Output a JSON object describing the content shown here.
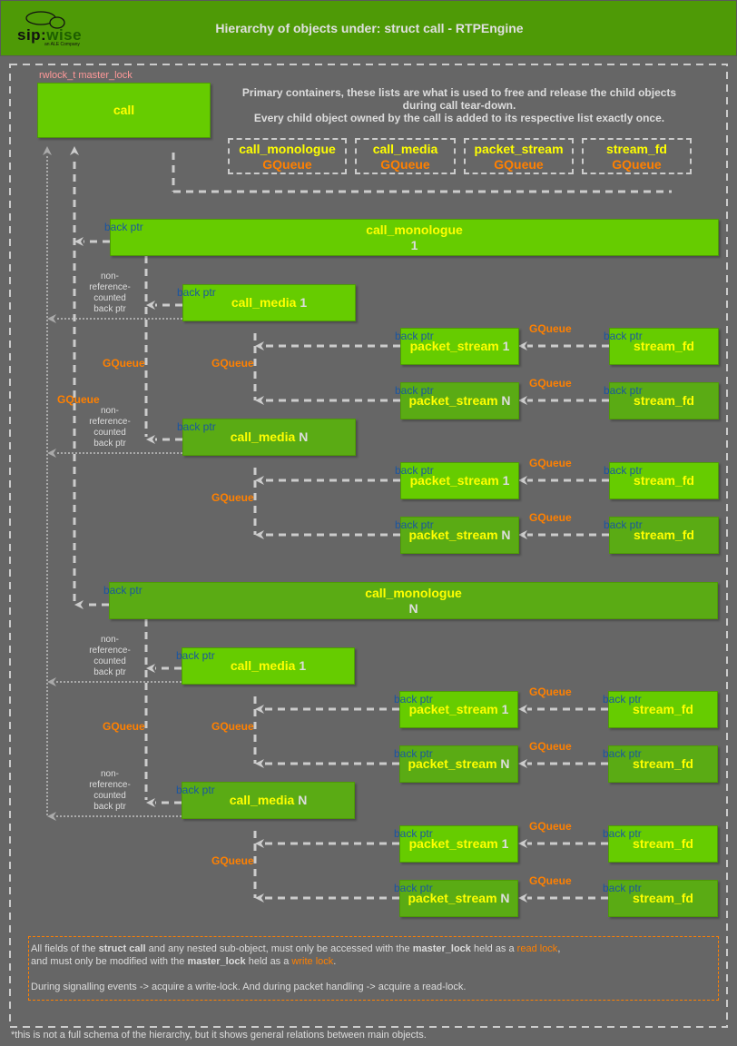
{
  "header": {
    "title": "Hierarchy of objects under: struct call - RTPEngine",
    "background": "#4e9a06"
  },
  "logo": {
    "text_a": "sip:",
    "text_b": "wise",
    "tagline": "an ALE Company"
  },
  "call": {
    "lock_label": "rwlock_t master_lock",
    "label": "call"
  },
  "containers_note": [
    "Primary containers, these lists are what is used to free and release the child objects",
    "during call tear-down.",
    "Every child object owned by the call is added to its respective list exactly once."
  ],
  "containers": [
    {
      "name": "call_monologue",
      "type": "GQueue"
    },
    {
      "name": "call_media",
      "type": "GQueue"
    },
    {
      "name": "packet_stream",
      "type": "GQueue"
    },
    {
      "name": "stream_fd",
      "type": "GQueue"
    }
  ],
  "labels": {
    "back_ptr": "back ptr",
    "gqueue": "GQueue",
    "non_ref": [
      "non-",
      "reference-",
      "counted",
      "back ptr"
    ]
  },
  "monologues": [
    {
      "label": "call_monologue",
      "index": "1",
      "medias": [
        {
          "label": "call_media",
          "index": "1",
          "streams": [
            {
              "label": "packet_stream",
              "index": "1",
              "fd": "stream_fd"
            },
            {
              "label": "packet_stream",
              "index": "N",
              "fd": "stream_fd"
            }
          ]
        },
        {
          "label": "call_media",
          "index": "N",
          "streams": [
            {
              "label": "packet_stream",
              "index": "1",
              "fd": "stream_fd"
            },
            {
              "label": "packet_stream",
              "index": "N",
              "fd": "stream_fd"
            }
          ]
        }
      ]
    },
    {
      "label": "call_monologue",
      "index": "N",
      "medias": [
        {
          "label": "call_media",
          "index": "1",
          "streams": [
            {
              "label": "packet_stream",
              "index": "1",
              "fd": "stream_fd"
            },
            {
              "label": "packet_stream",
              "index": "N",
              "fd": "stream_fd"
            }
          ]
        },
        {
          "label": "call_media",
          "index": "N",
          "streams": [
            {
              "label": "packet_stream",
              "index": "1",
              "fd": "stream_fd"
            },
            {
              "label": "packet_stream",
              "index": "N",
              "fd": "stream_fd"
            }
          ]
        }
      ]
    }
  ],
  "note": {
    "l1": [
      "All fields of the ",
      "struct call",
      " and any nested sub-object, must only be accessed with the ",
      "master_lock",
      " held as a ",
      "read lock",
      ","
    ],
    "l2": [
      "and must only be modified with the ",
      "master_lock",
      " held as a ",
      "write lock",
      "."
    ],
    "l3": "During signalling events -> acquire a write-lock. And during packet handling -> acquire a read-lock."
  },
  "footnote": "*this is not a full schema of the hierarchy, but it shows general relations between main objects.",
  "colors": {
    "box": "#66cc00",
    "box_dark": "#5aab14",
    "label": "#ffff00",
    "gqueue": "#ff8000",
    "back_ptr": "#1a56a0",
    "background": "#666666"
  }
}
